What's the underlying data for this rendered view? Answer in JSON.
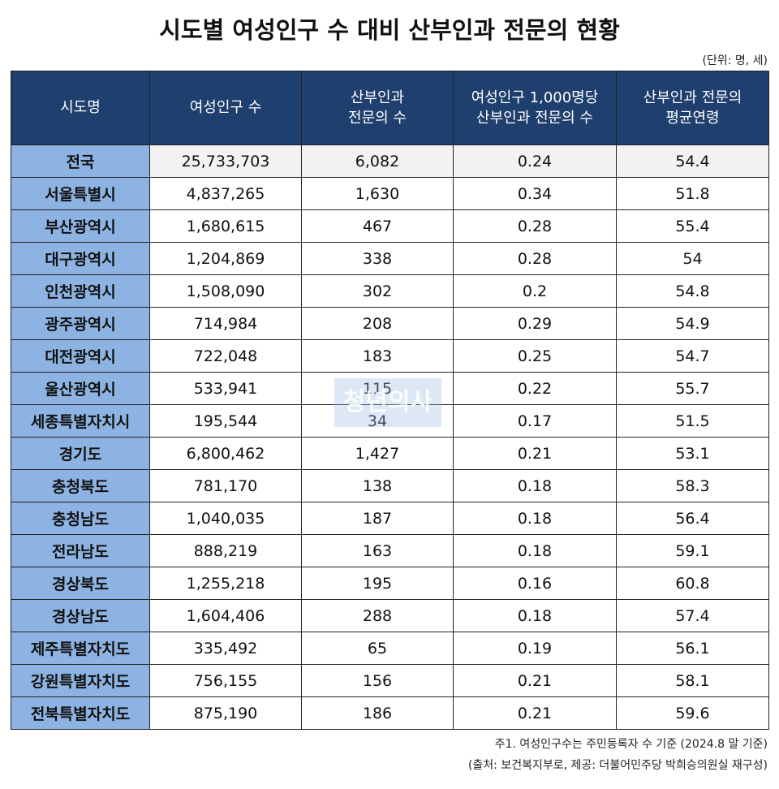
{
  "title": "시도별 여성인구 수 대비 산부인과 전문의 현황",
  "unit": "(단위: 명, 세)",
  "watermark": "청년의사",
  "table": {
    "header": [
      "시도명",
      "여성인구 수",
      "산부인과\n전문의 수",
      "여성인구 1,000명당\n산부인과 전문의 수",
      "산부인과 전문의\n평균연령"
    ],
    "rows": [
      [
        "전국",
        "25,733,703",
        "6,082",
        "0.24",
        "54.4"
      ],
      [
        "서울특별시",
        "4,837,265",
        "1,630",
        "0.34",
        "51.8"
      ],
      [
        "부산광역시",
        "1,680,615",
        "467",
        "0.28",
        "55.4"
      ],
      [
        "대구광역시",
        "1,204,869",
        "338",
        "0.28",
        "54"
      ],
      [
        "인천광역시",
        "1,508,090",
        "302",
        "0.2",
        "54.8"
      ],
      [
        "광주광역시",
        "714,984",
        "208",
        "0.29",
        "54.9"
      ],
      [
        "대전광역시",
        "722,048",
        "183",
        "0.25",
        "54.7"
      ],
      [
        "울산광역시",
        "533,941",
        "115",
        "0.22",
        "55.7"
      ],
      [
        "세종특별자치시",
        "195,544",
        "34",
        "0.17",
        "51.5"
      ],
      [
        "경기도",
        "6,800,462",
        "1,427",
        "0.21",
        "53.1"
      ],
      [
        "충청북도",
        "781,170",
        "138",
        "0.18",
        "58.3"
      ],
      [
        "충청남도",
        "1,040,035",
        "187",
        "0.18",
        "56.4"
      ],
      [
        "전라남도",
        "888,219",
        "163",
        "0.18",
        "59.1"
      ],
      [
        "경상북도",
        "1,255,218",
        "195",
        "0.16",
        "60.8"
      ],
      [
        "경상남도",
        "1,604,406",
        "288",
        "0.18",
        "57.4"
      ],
      [
        "제주특별자치도",
        "335,492",
        "65",
        "0.19",
        "56.1"
      ],
      [
        "강원특별자치도",
        "756,155",
        "156",
        "0.21",
        "58.1"
      ],
      [
        "전북특별자치도",
        "875,190",
        "186",
        "0.21",
        "59.6"
      ]
    ]
  },
  "notes": [
    "주1. 여성인구수는 주민등록자 수 기준 (2024.8 말 기준)",
    "(출처: 보건복지부로, 제공: 더불어민주당 박희승의원실 재구성)"
  ]
}
